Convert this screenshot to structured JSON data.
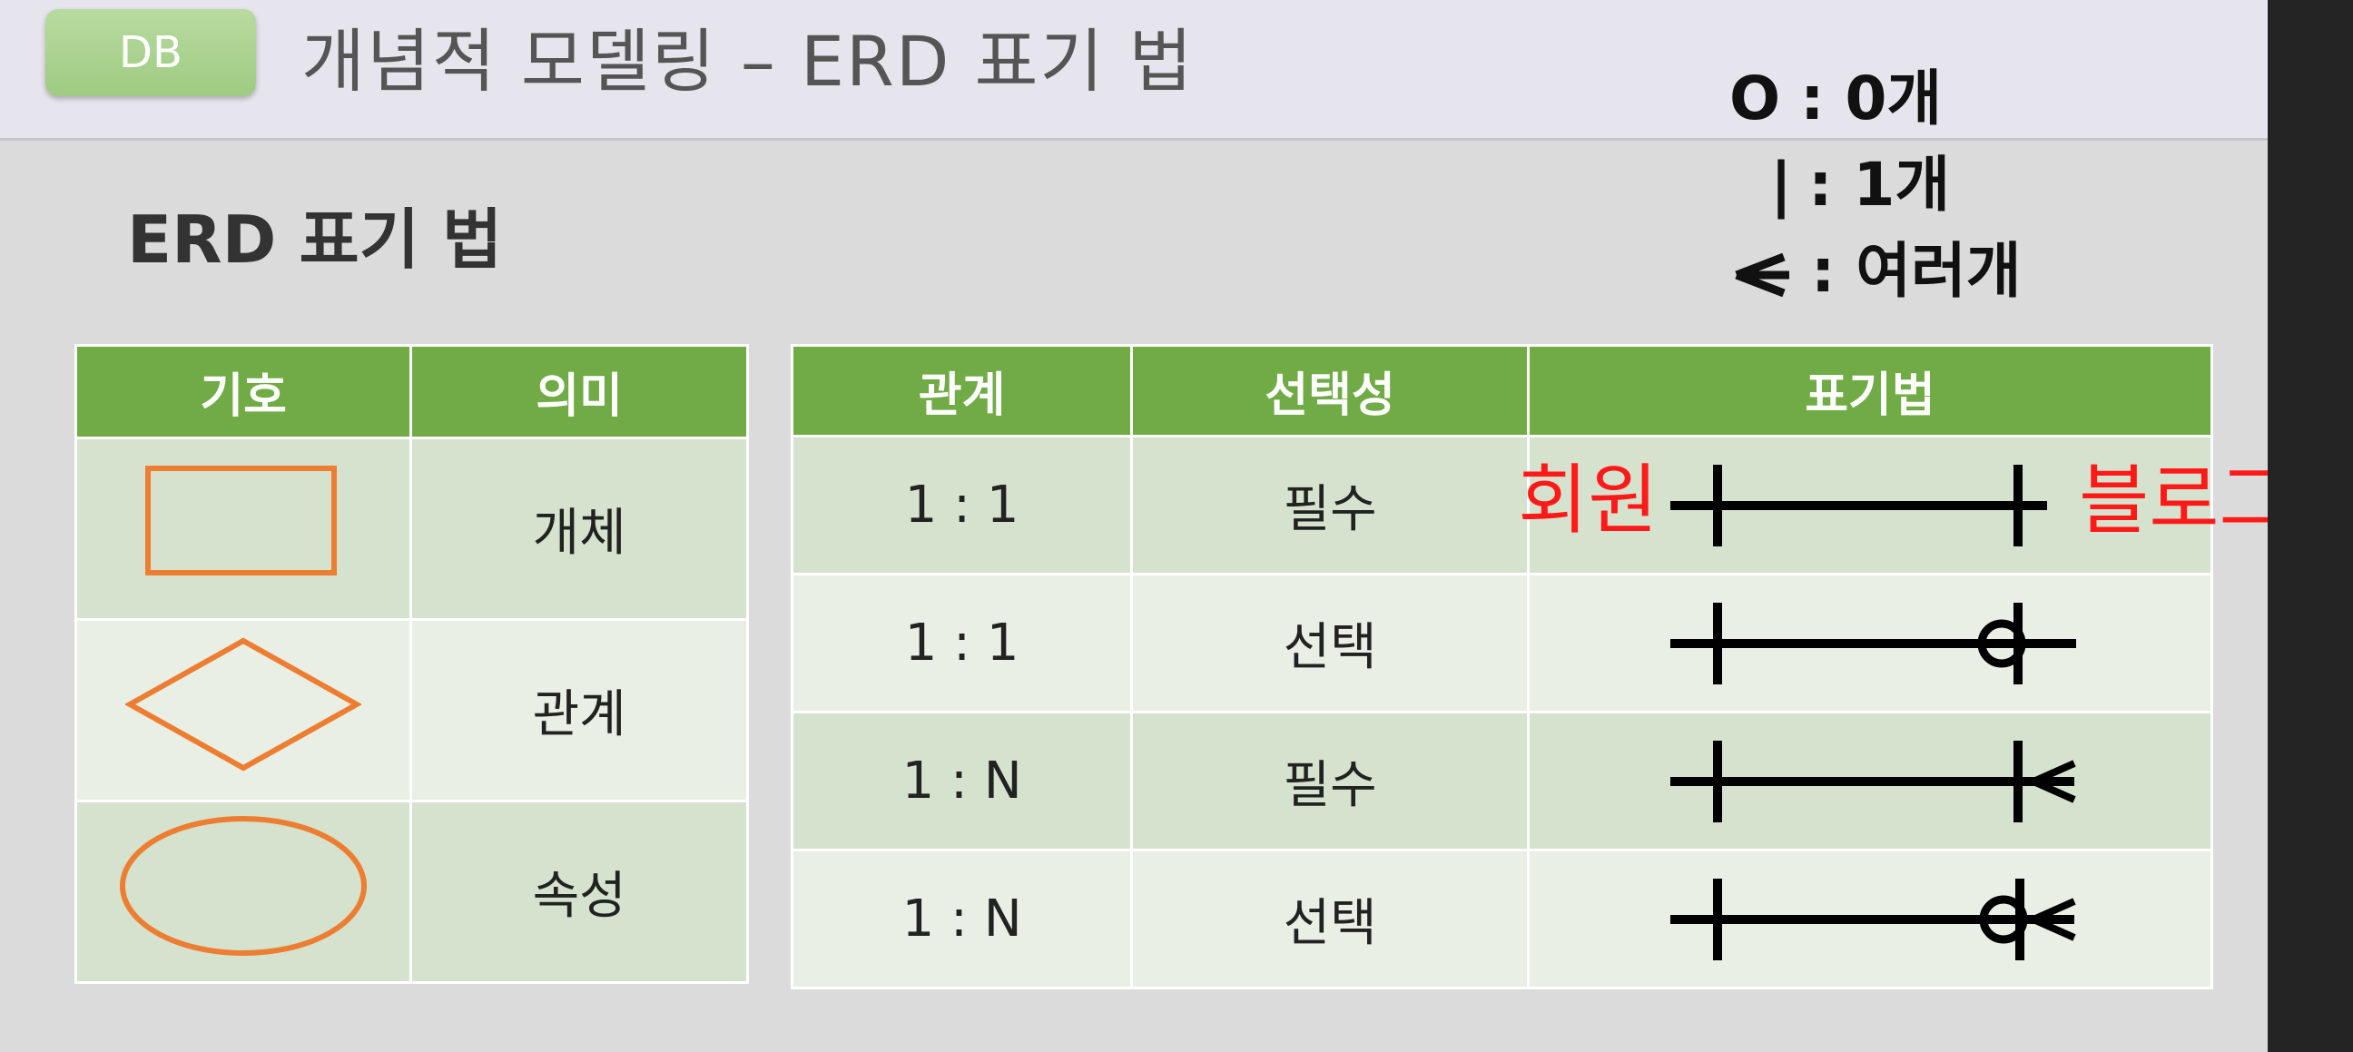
{
  "header": {
    "badge": "DB",
    "title": "개념적 모델링 – ERD 표기 법"
  },
  "legend": [
    {
      "symbol": "O",
      "label": ": 0개"
    },
    {
      "symbol": "|",
      "label": ": 1개"
    },
    {
      "symbol": "crow-foot-icon",
      "label": ": 여러개"
    }
  ],
  "section_title": "ERD 표기 법",
  "symbol_table": {
    "headers": [
      "기호",
      "의미"
    ],
    "rows": [
      {
        "shape": "rectangle-icon",
        "meaning": "개체"
      },
      {
        "shape": "diamond-icon",
        "meaning": "관계"
      },
      {
        "shape": "ellipse-icon",
        "meaning": "속성"
      }
    ]
  },
  "relation_table": {
    "headers": [
      "관계",
      "선택성",
      "표기법"
    ],
    "rows": [
      {
        "relation": "1 : 1",
        "optionality": "필수",
        "notation": "one-mandatory"
      },
      {
        "relation": "1 : 1",
        "optionality": "선택",
        "notation": "one-optional"
      },
      {
        "relation": "1 : N",
        "optionality": "필수",
        "notation": "many-mandatory"
      },
      {
        "relation": "1 : N",
        "optionality": "선택",
        "notation": "many-optional"
      }
    ]
  },
  "annotations": {
    "left": "회원",
    "right": "블로그"
  },
  "colors": {
    "header_green": "#71ab46",
    "shape_orange": "#ed7d31",
    "annotation_red": "#ff1a1a"
  }
}
